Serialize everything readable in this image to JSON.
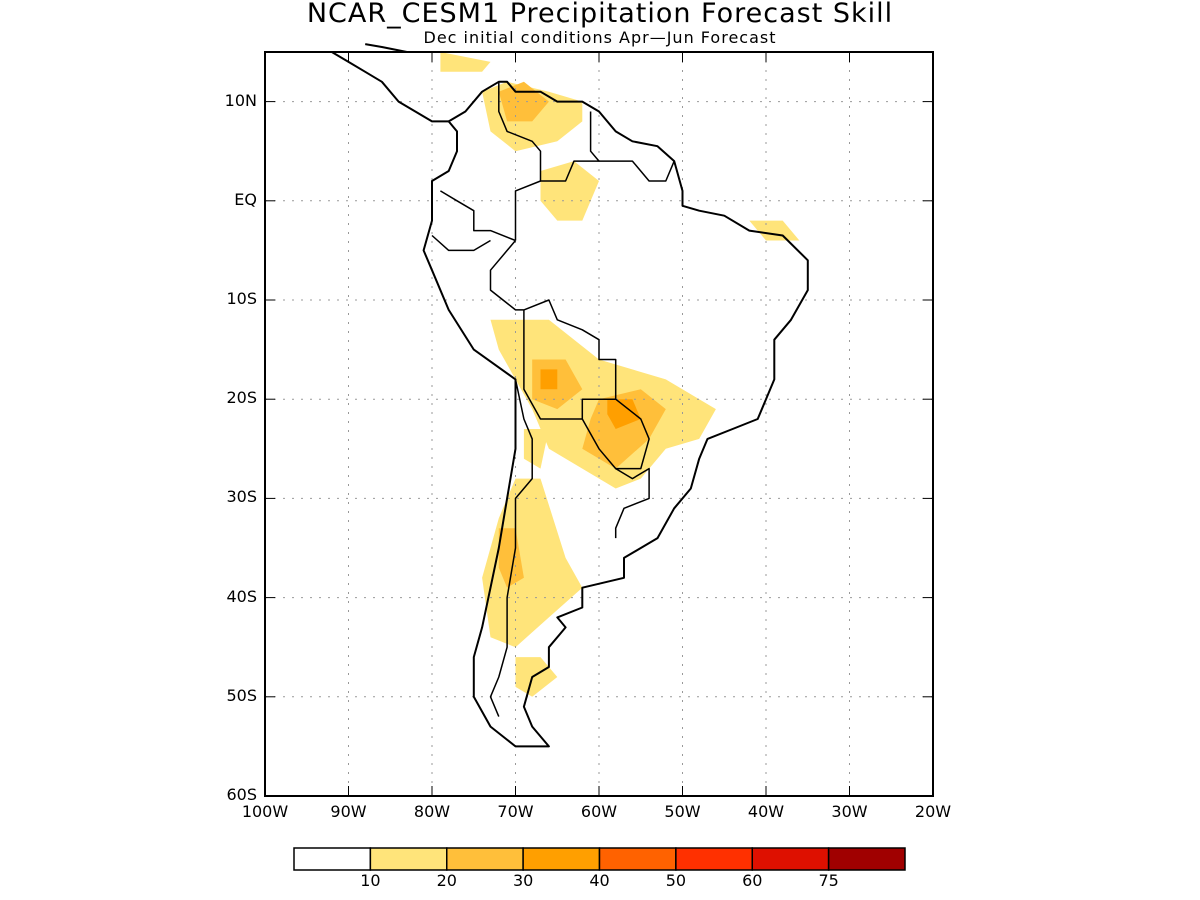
{
  "title": "NCAR_CESM1 Precipitation Forecast Skill",
  "subtitle": "Dec initial conditions  Apr—Jun Forecast",
  "map": {
    "lon_range": [
      -100,
      -20
    ],
    "lat_range": [
      -60,
      15
    ],
    "lat_labels": [
      {
        "lat": 10,
        "text": "10N"
      },
      {
        "lat": 0,
        "text": "EQ"
      },
      {
        "lat": -10,
        "text": "10S"
      },
      {
        "lat": -20,
        "text": "20S"
      },
      {
        "lat": -30,
        "text": "30S"
      },
      {
        "lat": -40,
        "text": "40S"
      },
      {
        "lat": -50,
        "text": "50S"
      },
      {
        "lat": -60,
        "text": "60S"
      }
    ],
    "lon_labels": [
      {
        "lon": -100,
        "text": "100W"
      },
      {
        "lon": -90,
        "text": "90W"
      },
      {
        "lon": -80,
        "text": "80W"
      },
      {
        "lon": -70,
        "text": "70W"
      },
      {
        "lon": -60,
        "text": "60W"
      },
      {
        "lon": -50,
        "text": "50W"
      },
      {
        "lon": -40,
        "text": "40W"
      },
      {
        "lon": -30,
        "text": "30W"
      },
      {
        "lon": -20,
        "text": "20W"
      }
    ]
  },
  "colorbar": {
    "colors": [
      "#ffffff",
      "#ffe47a",
      "#ffbf3a",
      "#ff9f00",
      "#ff6200",
      "#ff3000",
      "#de1000",
      "#a00000"
    ],
    "labels": [
      "10",
      "20",
      "30",
      "40",
      "50",
      "60",
      "75"
    ]
  },
  "skill_regions": [
    {
      "level": 1,
      "points": [
        [
          -74,
          11
        ],
        [
          -71,
          12
        ],
        [
          -66,
          11
        ],
        [
          -62,
          10
        ],
        [
          -62,
          8
        ],
        [
          -65,
          6
        ],
        [
          -70,
          5
        ],
        [
          -73,
          7
        ]
      ]
    },
    {
      "level": 1,
      "points": [
        [
          -67,
          3
        ],
        [
          -63,
          4
        ],
        [
          -60,
          2
        ],
        [
          -62,
          -2
        ],
        [
          -65,
          -2
        ],
        [
          -67,
          0
        ]
      ]
    },
    {
      "level": 1,
      "points": [
        [
          -79,
          15
        ],
        [
          -73,
          14
        ],
        [
          -74,
          13
        ],
        [
          -79,
          13
        ]
      ]
    },
    {
      "level": 1,
      "points": [
        [
          -42,
          -2
        ],
        [
          -38,
          -2
        ],
        [
          -36,
          -4
        ],
        [
          -40,
          -4
        ]
      ]
    },
    {
      "level": 1,
      "points": [
        [
          -73,
          -12
        ],
        [
          -66,
          -12
        ],
        [
          -60,
          -16
        ],
        [
          -52,
          -18
        ],
        [
          -46,
          -21
        ],
        [
          -48,
          -24
        ],
        [
          -52,
          -25
        ],
        [
          -55,
          -28
        ],
        [
          -58,
          -29
        ],
        [
          -62,
          -27
        ],
        [
          -66,
          -25
        ],
        [
          -68,
          -21
        ],
        [
          -70,
          -18
        ],
        [
          -72,
          -15
        ]
      ]
    },
    {
      "level": 1,
      "points": [
        [
          -70,
          -28
        ],
        [
          -67,
          -28
        ],
        [
          -64,
          -36
        ],
        [
          -62,
          -39
        ],
        [
          -66,
          -42
        ],
        [
          -70,
          -45
        ],
        [
          -73,
          -44
        ],
        [
          -74,
          -38
        ],
        [
          -72,
          -32
        ]
      ]
    },
    {
      "level": 1,
      "points": [
        [
          -70,
          -46
        ],
        [
          -67,
          -46
        ],
        [
          -65,
          -48
        ],
        [
          -68,
          -50
        ],
        [
          -70,
          -49
        ]
      ]
    },
    {
      "level": 1,
      "points": [
        [
          -69,
          -23
        ],
        [
          -66,
          -23
        ],
        [
          -67,
          -27
        ],
        [
          -69,
          -26
        ]
      ]
    },
    {
      "level": 2,
      "points": [
        [
          -72,
          11
        ],
        [
          -69,
          12
        ],
        [
          -66,
          10
        ],
        [
          -68,
          8
        ],
        [
          -71,
          8
        ]
      ]
    },
    {
      "level": 2,
      "points": [
        [
          -68,
          -16
        ],
        [
          -64,
          -16
        ],
        [
          -62,
          -19
        ],
        [
          -65,
          -21
        ],
        [
          -68,
          -20
        ]
      ]
    },
    {
      "level": 2,
      "points": [
        [
          -60,
          -20
        ],
        [
          -55,
          -19
        ],
        [
          -52,
          -21
        ],
        [
          -54,
          -24
        ],
        [
          -58,
          -27
        ],
        [
          -62,
          -25
        ],
        [
          -61,
          -22
        ]
      ]
    },
    {
      "level": 2,
      "points": [
        [
          -72,
          -33
        ],
        [
          -70,
          -33
        ],
        [
          -69,
          -38
        ],
        [
          -71,
          -39
        ],
        [
          -72,
          -37
        ]
      ]
    },
    {
      "level": 3,
      "points": [
        [
          -59,
          -20
        ],
        [
          -56,
          -20
        ],
        [
          -55,
          -22
        ],
        [
          -58,
          -23
        ],
        [
          -59,
          -21.5
        ]
      ]
    },
    {
      "level": 3,
      "points": [
        [
          -67,
          -17
        ],
        [
          -65,
          -17
        ],
        [
          -65,
          -19
        ],
        [
          -67,
          -19
        ]
      ]
    }
  ],
  "coastlines": [
    [
      [
        -78,
        8
      ],
      [
        -76,
        9
      ],
      [
        -74,
        11
      ],
      [
        -72,
        12
      ],
      [
        -71,
        12
      ],
      [
        -70,
        11
      ],
      [
        -67,
        11
      ],
      [
        -65,
        10
      ],
      [
        -62,
        10
      ],
      [
        -60,
        9
      ],
      [
        -58,
        7
      ],
      [
        -56,
        6
      ],
      [
        -53,
        5.5
      ],
      [
        -51,
        4
      ],
      [
        -50,
        1
      ],
      [
        -50,
        -0.5
      ],
      [
        -48,
        -1
      ],
      [
        -45,
        -1.5
      ],
      [
        -42,
        -3
      ],
      [
        -38,
        -3.5
      ],
      [
        -35,
        -6
      ],
      [
        -35,
        -9
      ],
      [
        -37,
        -12
      ],
      [
        -39,
        -14
      ],
      [
        -39,
        -18
      ],
      [
        -40,
        -20
      ],
      [
        -41,
        -22
      ],
      [
        -44,
        -23
      ],
      [
        -47,
        -24
      ],
      [
        -48,
        -26
      ],
      [
        -49,
        -29
      ],
      [
        -51,
        -31
      ],
      [
        -53,
        -34
      ],
      [
        -55,
        -35
      ],
      [
        -57,
        -36
      ],
      [
        -57,
        -38
      ],
      [
        -62,
        -39
      ],
      [
        -62,
        -41
      ],
      [
        -65,
        -42
      ],
      [
        -64,
        -43
      ],
      [
        -66,
        -45
      ],
      [
        -66,
        -47
      ],
      [
        -68,
        -48
      ],
      [
        -69,
        -51
      ],
      [
        -68,
        -53
      ],
      [
        -66,
        -55
      ],
      [
        -70,
        -55
      ],
      [
        -73,
        -53
      ],
      [
        -75,
        -50
      ],
      [
        -75,
        -46
      ],
      [
        -74,
        -43
      ],
      [
        -73,
        -39
      ],
      [
        -72,
        -35
      ],
      [
        -71,
        -30
      ],
      [
        -70,
        -25
      ],
      [
        -70,
        -18
      ],
      [
        -75,
        -15
      ],
      [
        -78,
        -11
      ],
      [
        -80,
        -7
      ],
      [
        -81,
        -5
      ],
      [
        -80,
        -2
      ],
      [
        -80,
        0
      ],
      [
        -80,
        2
      ],
      [
        -78,
        3
      ],
      [
        -77,
        5
      ],
      [
        -77,
        7
      ],
      [
        -78,
        8
      ]
    ],
    [
      [
        -78,
        8
      ],
      [
        -80,
        8
      ],
      [
        -82,
        9
      ],
      [
        -84,
        10
      ],
      [
        -86,
        12
      ],
      [
        -88,
        13
      ],
      [
        -90,
        14
      ],
      [
        -92,
        15
      ]
    ],
    [
      [
        -83,
        15
      ],
      [
        -86,
        15.5
      ],
      [
        -88,
        15.8
      ]
    ]
  ],
  "borders": [
    [
      [
        -72,
        12
      ],
      [
        -72,
        9
      ],
      [
        -71,
        7
      ],
      [
        -68,
        6
      ],
      [
        -67,
        5
      ],
      [
        -67,
        2
      ],
      [
        -70,
        1
      ],
      [
        -70,
        -4
      ]
    ],
    [
      [
        -61,
        9
      ],
      [
        -61,
        5
      ],
      [
        -60,
        4
      ],
      [
        -63,
        4
      ],
      [
        -64,
        2
      ],
      [
        -67,
        2
      ]
    ],
    [
      [
        -60,
        4
      ],
      [
        -56,
        4
      ],
      [
        -54,
        2
      ],
      [
        -52,
        2
      ],
      [
        -51,
        4
      ]
    ],
    [
      [
        -79,
        1
      ],
      [
        -77,
        0
      ],
      [
        -75,
        -1
      ],
      [
        -75,
        -3
      ],
      [
        -73,
        -3
      ],
      [
        -70,
        -4
      ]
    ],
    [
      [
        -80,
        -3.5
      ],
      [
        -78,
        -5
      ],
      [
        -75,
        -5
      ],
      [
        -73,
        -4
      ]
    ],
    [
      [
        -70,
        -4
      ],
      [
        -73,
        -7
      ],
      [
        -73,
        -9
      ],
      [
        -70,
        -11
      ],
      [
        -69,
        -11
      ]
    ],
    [
      [
        -69,
        -11
      ],
      [
        -66,
        -10
      ],
      [
        -65,
        -12
      ],
      [
        -62,
        -13
      ],
      [
        -60,
        -14
      ],
      [
        -60,
        -16
      ],
      [
        -58,
        -16
      ],
      [
        -58,
        -20
      ],
      [
        -62,
        -20
      ],
      [
        -62,
        -22
      ],
      [
        -65,
        -22
      ],
      [
        -67,
        -22
      ],
      [
        -69,
        -19
      ],
      [
        -69,
        -15
      ],
      [
        -69,
        -11
      ]
    ],
    [
      [
        -58,
        -20
      ],
      [
        -55,
        -22
      ],
      [
        -54,
        -24
      ],
      [
        -55,
        -27
      ],
      [
        -58,
        -27
      ],
      [
        -60,
        -25
      ],
      [
        -62,
        -22
      ]
    ],
    [
      [
        -70,
        -18
      ],
      [
        -69,
        -22
      ],
      [
        -68,
        -24
      ],
      [
        -68,
        -28
      ],
      [
        -70,
        -30
      ],
      [
        -70,
        -35
      ],
      [
        -71,
        -40
      ],
      [
        -71,
        -45
      ],
      [
        -72,
        -48
      ],
      [
        -73,
        -50
      ],
      [
        -72,
        -52
      ]
    ],
    [
      [
        -58,
        -27
      ],
      [
        -56,
        -28
      ],
      [
        -54,
        -27
      ],
      [
        -54,
        -30
      ],
      [
        -57,
        -31
      ],
      [
        -58,
        -33
      ],
      [
        -58,
        -34
      ]
    ]
  ]
}
